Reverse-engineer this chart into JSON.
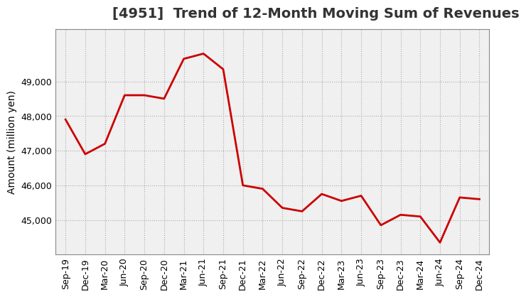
{
  "title": "[4951]  Trend of 12-Month Moving Sum of Revenues",
  "ylabel": "Amount (million yen)",
  "x_labels": [
    "Sep-19",
    "Dec-19",
    "Mar-20",
    "Jun-20",
    "Sep-20",
    "Dec-20",
    "Mar-21",
    "Jun-21",
    "Sep-21",
    "Dec-21",
    "Mar-22",
    "Jun-22",
    "Sep-22",
    "Dec-22",
    "Mar-23",
    "Jun-23",
    "Sep-23",
    "Dec-23",
    "Mar-24",
    "Jun-24",
    "Sep-24",
    "Dec-24"
  ],
  "values": [
    47900,
    46900,
    47200,
    48600,
    48600,
    48500,
    49650,
    49800,
    49350,
    46000,
    45900,
    45350,
    45250,
    45750,
    45550,
    45700,
    44850,
    45150,
    45100,
    44350,
    45650,
    45600
  ],
  "line_color": "#cc0000",
  "background_color": "#ffffff",
  "plot_bg_color": "#f0f0f0",
  "grid_color": "#aaaaaa",
  "ylim": [
    44000,
    50500
  ],
  "yticks": [
    45000,
    46000,
    47000,
    48000,
    49000
  ],
  "title_color": "#333333",
  "title_fontsize": 14,
  "label_fontsize": 10,
  "tick_fontsize": 9
}
